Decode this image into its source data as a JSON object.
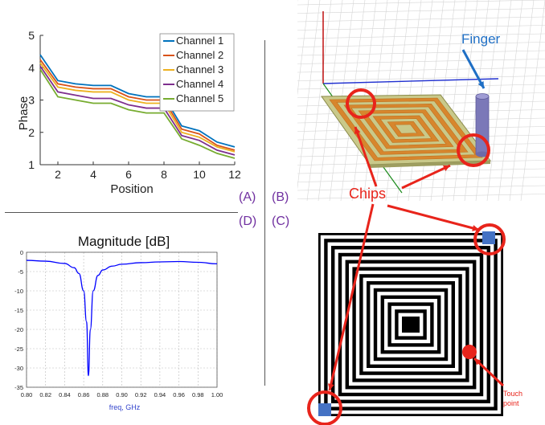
{
  "panels": {
    "a": "(A)",
    "b": "(B)",
    "c": "(C)",
    "d": "(D)"
  },
  "colors": {
    "panel_label": "#7030a0",
    "annotation_red": "#e8241b",
    "finger_blue": "#1f6fc5",
    "chip_blue": "#4472c4",
    "magnitude_line": "#0000ff"
  },
  "phase_chart": {
    "chart_data": {
      "type": "line",
      "ylabel": "Phase",
      "xlabel": "Position",
      "xlim": [
        1,
        12
      ],
      "ylim": [
        1,
        5
      ],
      "x_ticks": [
        2,
        4,
        6,
        8,
        10,
        12
      ],
      "y_ticks": [
        1,
        2,
        3,
        4,
        5
      ],
      "legend_position": "top-right",
      "x": [
        1,
        2,
        3,
        4,
        5,
        6,
        7,
        8,
        9,
        10,
        11,
        12
      ],
      "series": [
        {
          "name": "Channel 1",
          "color": "#0072bd",
          "values": [
            4.4,
            3.6,
            3.5,
            3.45,
            3.45,
            3.2,
            3.1,
            3.1,
            2.2,
            2.05,
            1.7,
            1.55
          ]
        },
        {
          "name": "Channel 2",
          "color": "#d95319",
          "values": [
            4.25,
            3.5,
            3.4,
            3.35,
            3.35,
            3.1,
            3.0,
            3.0,
            2.1,
            1.95,
            1.6,
            1.45
          ]
        },
        {
          "name": "Channel 3",
          "color": "#edb120",
          "values": [
            4.15,
            3.4,
            3.3,
            3.25,
            3.25,
            3.0,
            2.9,
            2.9,
            2.0,
            1.85,
            1.55,
            1.4
          ]
        },
        {
          "name": "Channel 4",
          "color": "#7e2f8e",
          "values": [
            4.05,
            3.25,
            3.15,
            3.05,
            3.05,
            2.85,
            2.75,
            2.75,
            1.9,
            1.75,
            1.45,
            1.3
          ]
        },
        {
          "name": "Channel 5",
          "color": "#77ac30",
          "values": [
            3.95,
            3.1,
            3.0,
            2.9,
            2.9,
            2.7,
            2.6,
            2.6,
            1.8,
            1.6,
            1.35,
            1.2
          ]
        }
      ]
    }
  },
  "magnitude_chart": {
    "chart_data": {
      "type": "line",
      "title": "Magnitude [dB]",
      "xlabel": "freq, GHz",
      "xlim": [
        0.8,
        1.0
      ],
      "ylim": [
        -35,
        0
      ],
      "x_ticks": [
        0.8,
        0.82,
        0.84,
        0.86,
        0.88,
        0.9,
        0.92,
        0.94,
        0.96,
        0.98,
        1.0
      ],
      "y_ticks": [
        0,
        -5,
        -10,
        -15,
        -20,
        -25,
        -30,
        -35
      ],
      "x_tick_labels": [
        "0.80",
        "0.82",
        "0.84",
        "0.86",
        "0.88",
        "0.90",
        "0.92",
        "0.94",
        "0.96",
        "0.98",
        "1.00"
      ],
      "y_tick_labels": [
        "0",
        "-5",
        "-10",
        "-15",
        "-20",
        "-25",
        "-30",
        "-35"
      ],
      "grid": true,
      "x": [
        0.8,
        0.82,
        0.84,
        0.85,
        0.855,
        0.86,
        0.863,
        0.865,
        0.867,
        0.87,
        0.875,
        0.88,
        0.89,
        0.9,
        0.92,
        0.94,
        0.96,
        0.98,
        1.0
      ],
      "series": [
        {
          "values": [
            -2.1,
            -2.3,
            -2.9,
            -4.0,
            -5.5,
            -10.0,
            -18.0,
            -32.0,
            -20.0,
            -10.0,
            -6.0,
            -4.6,
            -3.6,
            -3.1,
            -2.7,
            -2.5,
            -2.4,
            -2.6,
            -3.0
          ]
        }
      ]
    }
  },
  "annotations": {
    "finger": "Finger",
    "chips": "Chips",
    "touch_point": "Touch point"
  }
}
